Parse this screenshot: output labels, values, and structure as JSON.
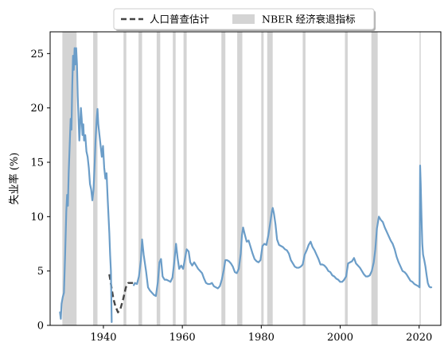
{
  "chart_data": {
    "type": "line",
    "ylabel": "失业率 (%)",
    "xlabel": "",
    "xlim": [
      1926.5,
      2025.5
    ],
    "ylim": [
      0,
      27
    ],
    "xticks": [
      1940,
      1960,
      1980,
      2000,
      2020
    ],
    "yticks": [
      0,
      5,
      10,
      15,
      20,
      25
    ],
    "grid": false,
    "legend": {
      "placement": "top-center (above plot)",
      "entries": [
        {
          "label": "人口普查估计",
          "style": "dashed",
          "color": "#444444"
        },
        {
          "label": "NBER 经济衰退指标",
          "style": "patch",
          "color": "#d4d4d4"
        }
      ]
    },
    "recessions": [
      [
        1929.6,
        1933.2
      ],
      [
        1937.4,
        1938.5
      ],
      [
        1945.1,
        1945.8
      ],
      [
        1948.9,
        1949.8
      ],
      [
        1953.5,
        1954.4
      ],
      [
        1957.6,
        1958.3
      ],
      [
        1960.3,
        1961.1
      ],
      [
        1969.9,
        1970.9
      ],
      [
        1973.9,
        1975.2
      ],
      [
        1980.0,
        1980.6
      ],
      [
        1981.5,
        1982.9
      ],
      [
        1990.5,
        1991.2
      ],
      [
        2001.2,
        2001.9
      ],
      [
        2007.9,
        2009.5
      ],
      [
        2020.1,
        2020.4
      ]
    ],
    "series": [
      {
        "name": "人口普查估计",
        "style": "dashed",
        "color": "#444444",
        "points": [
          [
            1941.5,
            4.7
          ],
          [
            1942.0,
            3.6
          ],
          [
            1942.5,
            2.5
          ],
          [
            1943.0,
            1.8
          ],
          [
            1943.7,
            1.2
          ],
          [
            1944.3,
            1.5
          ],
          [
            1945.0,
            2.4
          ],
          [
            1945.7,
            3.5
          ],
          [
            1946.3,
            3.9
          ],
          [
            1947.0,
            3.9
          ],
          [
            1947.5,
            3.9
          ]
        ]
      },
      {
        "name": "",
        "style": "solid",
        "color": "#6b9dc8",
        "points": [
          [
            1929.0,
            1.2
          ],
          [
            1929.2,
            0.6
          ],
          [
            1929.4,
            2.0
          ],
          [
            1929.7,
            2.6
          ],
          [
            1930.0,
            3.0
          ],
          [
            1930.3,
            6.5
          ],
          [
            1930.6,
            10.5
          ],
          [
            1930.8,
            12.0
          ],
          [
            1931.0,
            11.0
          ],
          [
            1931.2,
            14.0
          ],
          [
            1931.5,
            17.0
          ],
          [
            1931.7,
            19.0
          ],
          [
            1931.9,
            18.0
          ],
          [
            1932.1,
            22.0
          ],
          [
            1932.3,
            24.8
          ],
          [
            1932.5,
            23.5
          ],
          [
            1932.7,
            25.5
          ],
          [
            1932.9,
            24.0
          ],
          [
            1933.1,
            25.5
          ],
          [
            1933.3,
            24.0
          ],
          [
            1933.5,
            21.0
          ],
          [
            1933.7,
            19.0
          ],
          [
            1933.9,
            17.0
          ],
          [
            1934.1,
            18.5
          ],
          [
            1934.3,
            20.0
          ],
          [
            1934.5,
            19.0
          ],
          [
            1934.7,
            17.5
          ],
          [
            1934.9,
            18.5
          ],
          [
            1935.1,
            17.0
          ],
          [
            1935.4,
            17.5
          ],
          [
            1935.7,
            16.0
          ],
          [
            1936.0,
            15.5
          ],
          [
            1936.3,
            14.5
          ],
          [
            1936.6,
            13.0
          ],
          [
            1936.9,
            12.5
          ],
          [
            1937.2,
            11.5
          ],
          [
            1937.5,
            12.5
          ],
          [
            1937.8,
            15.0
          ],
          [
            1938.0,
            17.0
          ],
          [
            1938.3,
            19.0
          ],
          [
            1938.5,
            19.9
          ],
          [
            1938.7,
            18.5
          ],
          [
            1939.0,
            17.5
          ],
          [
            1939.3,
            16.5
          ],
          [
            1939.6,
            15.5
          ],
          [
            1939.9,
            16.5
          ],
          [
            1940.2,
            14.5
          ],
          [
            1940.5,
            13.5
          ],
          [
            1940.8,
            14.0
          ],
          [
            1941.1,
            11.5
          ],
          [
            1941.3,
            10.0
          ],
          [
            1941.5,
            8.5
          ],
          [
            1941.7,
            6.5
          ],
          [
            1941.9,
            5.0
          ],
          [
            1942.1,
            0.3
          ]
        ]
      },
      {
        "name": "",
        "style": "solid",
        "color": "#6b9dc8",
        "points": [
          [
            1947.7,
            3.7
          ],
          [
            1948.0,
            3.9
          ],
          [
            1948.5,
            3.8
          ],
          [
            1949.0,
            4.5
          ],
          [
            1949.5,
            6.0
          ],
          [
            1949.8,
            7.9
          ],
          [
            1950.2,
            6.5
          ],
          [
            1950.8,
            5.0
          ],
          [
            1951.3,
            3.5
          ],
          [
            1951.8,
            3.2
          ],
          [
            1952.3,
            3.0
          ],
          [
            1952.8,
            2.8
          ],
          [
            1953.3,
            2.7
          ],
          [
            1953.8,
            4.0
          ],
          [
            1954.2,
            5.8
          ],
          [
            1954.6,
            6.1
          ],
          [
            1955.0,
            4.5
          ],
          [
            1955.5,
            4.2
          ],
          [
            1956.0,
            4.2
          ],
          [
            1956.5,
            4.1
          ],
          [
            1957.0,
            4.0
          ],
          [
            1957.5,
            4.4
          ],
          [
            1958.0,
            6.0
          ],
          [
            1958.4,
            7.5
          ],
          [
            1958.8,
            6.2
          ],
          [
            1959.2,
            5.2
          ],
          [
            1959.7,
            5.5
          ],
          [
            1960.2,
            5.2
          ],
          [
            1960.6,
            6.0
          ],
          [
            1961.1,
            7.0
          ],
          [
            1961.6,
            6.8
          ],
          [
            1962.0,
            5.8
          ],
          [
            1962.5,
            5.5
          ],
          [
            1963.0,
            5.8
          ],
          [
            1963.5,
            5.5
          ],
          [
            1964.0,
            5.2
          ],
          [
            1964.5,
            5.0
          ],
          [
            1965.0,
            4.8
          ],
          [
            1965.5,
            4.3
          ],
          [
            1966.0,
            3.9
          ],
          [
            1966.5,
            3.8
          ],
          [
            1967.0,
            3.8
          ],
          [
            1967.5,
            3.9
          ],
          [
            1968.0,
            3.6
          ],
          [
            1968.5,
            3.5
          ],
          [
            1969.0,
            3.4
          ],
          [
            1969.5,
            3.6
          ],
          [
            1970.0,
            4.2
          ],
          [
            1970.5,
            5.1
          ],
          [
            1970.9,
            6.0
          ],
          [
            1971.3,
            6.0
          ],
          [
            1971.8,
            5.9
          ],
          [
            1972.3,
            5.7
          ],
          [
            1972.8,
            5.4
          ],
          [
            1973.3,
            4.9
          ],
          [
            1973.8,
            4.8
          ],
          [
            1974.3,
            5.2
          ],
          [
            1974.8,
            6.6
          ],
          [
            1975.1,
            8.3
          ],
          [
            1975.4,
            9.0
          ],
          [
            1975.8,
            8.4
          ],
          [
            1976.3,
            7.7
          ],
          [
            1976.8,
            7.8
          ],
          [
            1977.3,
            7.2
          ],
          [
            1977.8,
            6.6
          ],
          [
            1978.3,
            6.1
          ],
          [
            1978.8,
            5.9
          ],
          [
            1979.3,
            5.8
          ],
          [
            1979.8,
            6.0
          ],
          [
            1980.3,
            7.3
          ],
          [
            1980.8,
            7.5
          ],
          [
            1981.3,
            7.4
          ],
          [
            1981.8,
            8.3
          ],
          [
            1982.3,
            9.5
          ],
          [
            1982.7,
            10.5
          ],
          [
            1982.9,
            10.8
          ],
          [
            1983.2,
            10.3
          ],
          [
            1983.6,
            9.3
          ],
          [
            1984.0,
            7.9
          ],
          [
            1984.5,
            7.4
          ],
          [
            1985.0,
            7.3
          ],
          [
            1985.5,
            7.2
          ],
          [
            1986.0,
            7.0
          ],
          [
            1986.5,
            6.9
          ],
          [
            1987.0,
            6.6
          ],
          [
            1987.5,
            6.0
          ],
          [
            1988.0,
            5.7
          ],
          [
            1988.5,
            5.4
          ],
          [
            1989.0,
            5.3
          ],
          [
            1989.5,
            5.3
          ],
          [
            1990.0,
            5.4
          ],
          [
            1990.5,
            5.6
          ],
          [
            1991.0,
            6.5
          ],
          [
            1991.5,
            6.9
          ],
          [
            1992.0,
            7.4
          ],
          [
            1992.5,
            7.7
          ],
          [
            1993.0,
            7.2
          ],
          [
            1993.5,
            6.9
          ],
          [
            1994.0,
            6.5
          ],
          [
            1994.5,
            6.1
          ],
          [
            1995.0,
            5.6
          ],
          [
            1995.5,
            5.6
          ],
          [
            1996.0,
            5.5
          ],
          [
            1996.5,
            5.3
          ],
          [
            1997.0,
            5.0
          ],
          [
            1997.5,
            4.9
          ],
          [
            1998.0,
            4.6
          ],
          [
            1998.5,
            4.5
          ],
          [
            1999.0,
            4.3
          ],
          [
            1999.5,
            4.2
          ],
          [
            2000.0,
            4.0
          ],
          [
            2000.5,
            4.0
          ],
          [
            2001.0,
            4.2
          ],
          [
            2001.5,
            4.5
          ],
          [
            2002.0,
            5.7
          ],
          [
            2002.5,
            5.8
          ],
          [
            2003.0,
            5.9
          ],
          [
            2003.5,
            6.2
          ],
          [
            2004.0,
            5.7
          ],
          [
            2004.5,
            5.5
          ],
          [
            2005.0,
            5.3
          ],
          [
            2005.5,
            5.0
          ],
          [
            2006.0,
            4.7
          ],
          [
            2006.5,
            4.5
          ],
          [
            2007.0,
            4.5
          ],
          [
            2007.5,
            4.6
          ],
          [
            2008.0,
            5.0
          ],
          [
            2008.5,
            5.8
          ],
          [
            2008.9,
            7.0
          ],
          [
            2009.3,
            8.9
          ],
          [
            2009.8,
            10.0
          ],
          [
            2010.3,
            9.7
          ],
          [
            2010.8,
            9.5
          ],
          [
            2011.3,
            9.0
          ],
          [
            2011.8,
            8.6
          ],
          [
            2012.3,
            8.2
          ],
          [
            2012.8,
            7.8
          ],
          [
            2013.3,
            7.5
          ],
          [
            2013.8,
            7.0
          ],
          [
            2014.3,
            6.3
          ],
          [
            2014.8,
            5.8
          ],
          [
            2015.3,
            5.4
          ],
          [
            2015.8,
            5.0
          ],
          [
            2016.3,
            4.9
          ],
          [
            2016.8,
            4.7
          ],
          [
            2017.3,
            4.4
          ],
          [
            2017.8,
            4.1
          ],
          [
            2018.3,
            4.0
          ],
          [
            2018.8,
            3.8
          ],
          [
            2019.3,
            3.7
          ],
          [
            2019.8,
            3.6
          ],
          [
            2020.1,
            3.5
          ],
          [
            2020.25,
            14.7
          ],
          [
            2020.4,
            13.0
          ],
          [
            2020.6,
            10.0
          ],
          [
            2020.8,
            7.5
          ],
          [
            2021.0,
            6.5
          ],
          [
            2021.3,
            6.0
          ],
          [
            2021.6,
            5.4
          ],
          [
            2021.9,
            4.6
          ],
          [
            2022.2,
            3.9
          ],
          [
            2022.5,
            3.6
          ],
          [
            2022.8,
            3.5
          ],
          [
            2023.1,
            3.5
          ]
        ]
      }
    ]
  }
}
